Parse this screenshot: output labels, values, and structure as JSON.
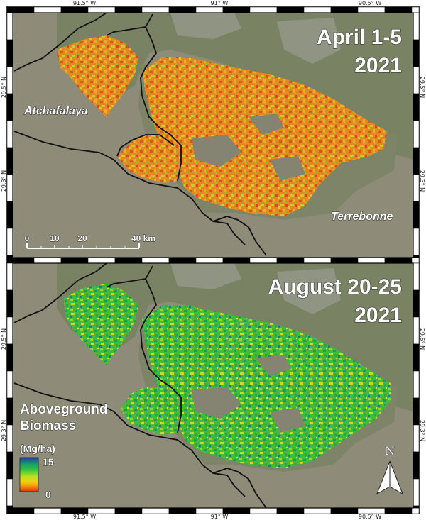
{
  "axes": {
    "top_lon_labels": [
      "91.5° W",
      "91° W",
      "90.5° W"
    ],
    "bottom_lon_labels": [
      "91.5° W",
      "91° W",
      "90.5° W"
    ],
    "left_lat_labels": [
      "29.5° N",
      "29.3° N",
      "29.5° N",
      "29.3° N"
    ],
    "right_lat_labels": [
      "29.5° N",
      "29.3° N",
      "29.5° N",
      "29.3° N"
    ]
  },
  "panels": [
    {
      "title_line1": "April 1-5",
      "title_line2": "2021",
      "season": "spring"
    },
    {
      "title_line1": "August 20-25",
      "title_line2": "2021",
      "season": "summer"
    }
  ],
  "places": {
    "atchafalaya": "Atchafalaya",
    "terrebonne": "Terrebonne"
  },
  "scale_bar": {
    "labels": [
      "0",
      "10",
      "20",
      "40 km"
    ],
    "values_km": [
      0,
      10,
      20,
      40
    ]
  },
  "legend": {
    "title_line1": "Aboveground",
    "title_line2": "Biomass",
    "unit": "(Mg/ha)",
    "max_label": "15",
    "min_label": "0",
    "range": [
      0,
      15
    ],
    "colors": [
      "#1f3f9a",
      "#1a9a6a",
      "#36c440",
      "#b8e020",
      "#f2d010",
      "#f08a10",
      "#e03010"
    ]
  },
  "north_arrow": {
    "label": "N",
    "icon": "north-arrow-icon"
  },
  "colors": {
    "water": "#8c8a7a",
    "land": "#7b8266",
    "boundary": "#111111"
  }
}
